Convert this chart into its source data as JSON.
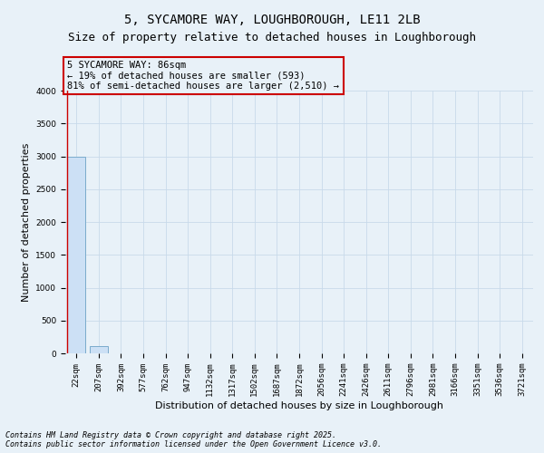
{
  "title": "5, SYCAMORE WAY, LOUGHBOROUGH, LE11 2LB",
  "subtitle": "Size of property relative to detached houses in Loughborough",
  "xlabel": "Distribution of detached houses by size in Loughborough",
  "ylabel": "Number of detached properties",
  "bin_labels": [
    "22sqm",
    "207sqm",
    "392sqm",
    "577sqm",
    "762sqm",
    "947sqm",
    "1132sqm",
    "1317sqm",
    "1502sqm",
    "1687sqm",
    "1872sqm",
    "2056sqm",
    "2241sqm",
    "2426sqm",
    "2611sqm",
    "2796sqm",
    "2981sqm",
    "3166sqm",
    "3351sqm",
    "3536sqm",
    "3721sqm"
  ],
  "bar_values": [
    3000,
    110,
    5,
    2,
    1,
    1,
    0,
    0,
    0,
    0,
    0,
    0,
    0,
    0,
    0,
    0,
    0,
    0,
    0,
    0,
    0
  ],
  "bar_color": "#cce0f5",
  "bar_edgecolor": "#7aabcc",
  "grid_color": "#c8daea",
  "background_color": "#e8f1f8",
  "vline_color": "#cc0000",
  "annotation_text": "5 SYCAMORE WAY: 86sqm\n← 19% of detached houses are smaller (593)\n81% of semi-detached houses are larger (2,510) →",
  "annotation_box_color": "#cc0000",
  "ylim": [
    0,
    4000
  ],
  "yticks": [
    0,
    500,
    1000,
    1500,
    2000,
    2500,
    3000,
    3500,
    4000
  ],
  "footer_line1": "Contains HM Land Registry data © Crown copyright and database right 2025.",
  "footer_line2": "Contains public sector information licensed under the Open Government Licence v3.0.",
  "title_fontsize": 10,
  "subtitle_fontsize": 9,
  "tick_fontsize": 6.5,
  "ylabel_fontsize": 8,
  "xlabel_fontsize": 8,
  "annotation_fontsize": 7.5,
  "footer_fontsize": 6
}
